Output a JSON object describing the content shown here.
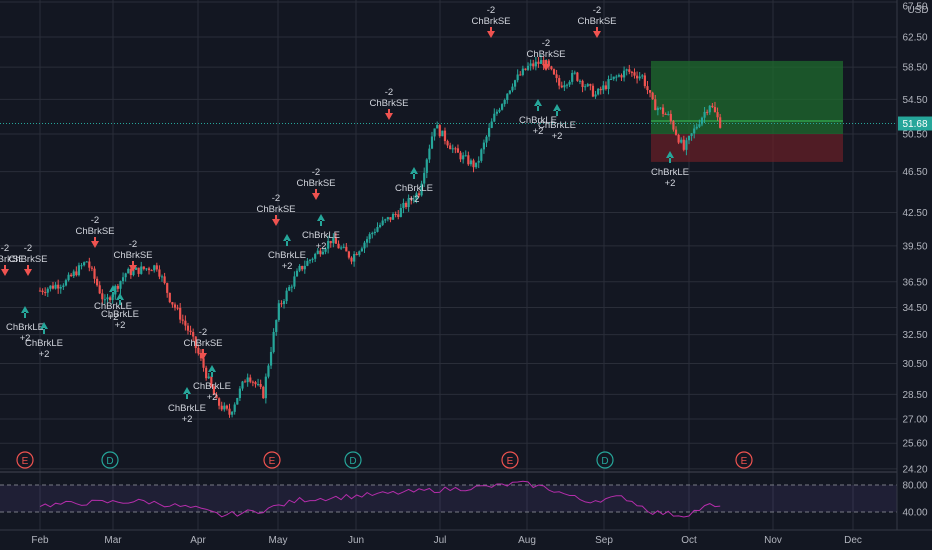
{
  "header": {
    "currency": "USD"
  },
  "price_axis": {
    "ticks": [
      "67.50",
      "62.50",
      "58.50",
      "54.50",
      "50.50",
      "46.50",
      "42.50",
      "39.50",
      "36.50",
      "34.50",
      "32.50",
      "30.50",
      "28.50",
      "27.00",
      "25.60",
      "24.20"
    ],
    "current_price": "51.68"
  },
  "rsi_axis": {
    "ticks": [
      "80.00",
      "40.00"
    ]
  },
  "time_axis": {
    "ticks": [
      "Feb",
      "Mar",
      "Apr",
      "May",
      "Jun",
      "Jul",
      "Aug",
      "Sep",
      "Oct",
      "Nov",
      "Dec"
    ]
  },
  "events": [
    {
      "label": "E",
      "type": "earnings"
    },
    {
      "label": "D",
      "type": "dividend"
    },
    {
      "label": "E",
      "type": "earnings"
    },
    {
      "label": "D",
      "type": "dividend"
    },
    {
      "label": "E",
      "type": "earnings"
    },
    {
      "label": "D",
      "type": "dividend"
    },
    {
      "label": "E",
      "type": "earnings"
    }
  ],
  "signals": {
    "short": {
      "qty": "-2",
      "name": "ChBrkSE"
    },
    "long": {
      "name": "ChBrkLE",
      "qty": "+2"
    }
  },
  "colors": {
    "background": "#131722",
    "up": "#26a69a",
    "down": "#ef5350",
    "rsi": "#b52dab",
    "earnings": "#ef5350",
    "dividend": "#26a69a",
    "profit_zone": "#1c5e2a",
    "loss_zone": "#5c1f24"
  },
  "chart_data": {
    "type": "candlestick",
    "price_scale": "log",
    "y_ticks": [
      67.5,
      62.5,
      58.5,
      54.5,
      50.5,
      46.5,
      42.5,
      39.5,
      36.5,
      34.5,
      32.5,
      30.5,
      28.5,
      27.0,
      25.6,
      24.2
    ],
    "x_ticks": [
      "Feb",
      "Mar",
      "Apr",
      "May",
      "Jun",
      "Jul",
      "Aug",
      "Sep",
      "Oct",
      "Nov",
      "Dec"
    ],
    "last_price": 51.68,
    "close_approx": [
      {
        "period": "late Jan",
        "close": 35.8
      },
      {
        "period": "Feb",
        "close": 37.0
      },
      {
        "period": "Mar",
        "close": 33.0
      },
      {
        "period": "late Mar",
        "close": 27.5
      },
      {
        "period": "Apr",
        "close": 37.5
      },
      {
        "period": "May",
        "close": 42.5
      },
      {
        "period": "Jun",
        "close": 49.0
      },
      {
        "period": "Jul",
        "close": 59.0
      },
      {
        "period": "Aug",
        "close": 56.0
      },
      {
        "period": "Sep",
        "close": 52.5
      },
      {
        "period": "late Sep",
        "close": 49.0
      },
      {
        "period": "Oct",
        "close": 51.68
      }
    ],
    "strategy_signals": [
      {
        "label": "ChBrkSE",
        "qty": -2
      },
      {
        "label": "ChBrkLE",
        "qty": 2
      }
    ],
    "trade_zone": {
      "take_profit": 59.3,
      "entry": 50.5,
      "stop": 47.5
    },
    "rsi": {
      "levels": [
        80,
        40
      ]
    }
  }
}
